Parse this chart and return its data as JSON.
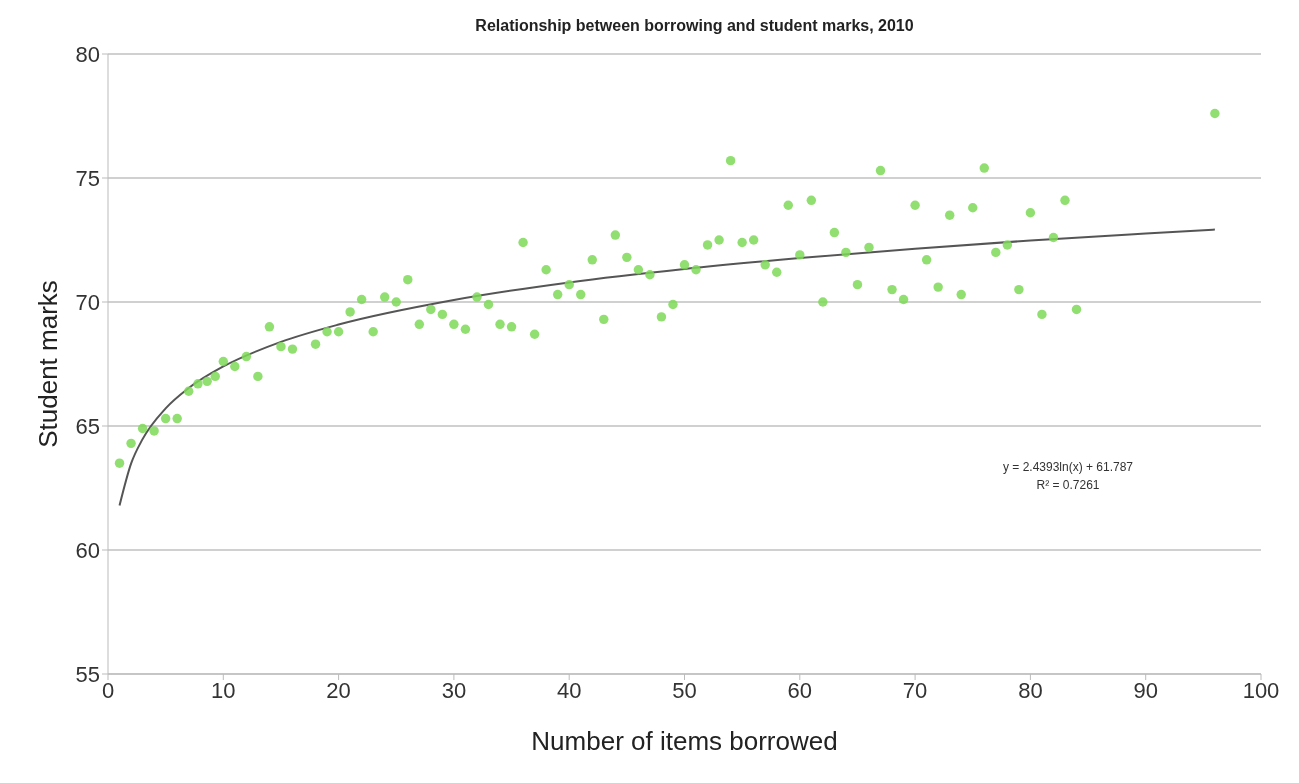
{
  "chart_data": {
    "type": "scatter",
    "title": "Relationship between borrowing and student marks, 2010",
    "xlabel": "Number of items borrowed",
    "ylabel": "Student marks",
    "xlim": [
      0,
      100
    ],
    "xticks": [
      0,
      10,
      20,
      30,
      40,
      50,
      60,
      70,
      80,
      90,
      100
    ],
    "ylim": [
      55,
      80
    ],
    "yticks": [
      55,
      60,
      65,
      70,
      75,
      80
    ],
    "grid": "y",
    "legend": false,
    "marker": "circle",
    "annotations": [
      "y = 2.4393ln(x) + 61.787",
      "R² = 0.7261"
    ],
    "series": [
      {
        "color": "#7ed957",
        "x": [
          1,
          2,
          3,
          4,
          5,
          6,
          7,
          7.8,
          8.6,
          9.3,
          10,
          11,
          12,
          13,
          14,
          15,
          16,
          18,
          19,
          20,
          21,
          22,
          23,
          24,
          25,
          26,
          27,
          28,
          29,
          30,
          31,
          32,
          33,
          34,
          35,
          36,
          37,
          38,
          39,
          40,
          41,
          42,
          43,
          44,
          45,
          46,
          47,
          48,
          49,
          50,
          51,
          52,
          53,
          54,
          55,
          56,
          57,
          58,
          59,
          60,
          61,
          62,
          63,
          64,
          65,
          66,
          67,
          68,
          69,
          70,
          71,
          72,
          73,
          74,
          75,
          76,
          77,
          78,
          79,
          80,
          81,
          82,
          83,
          84,
          96
        ],
        "values": [
          63.5,
          64.3,
          64.9,
          64.8,
          65.3,
          65.3,
          66.4,
          66.7,
          66.8,
          67.0,
          67.6,
          67.4,
          67.8,
          67.0,
          69.0,
          68.2,
          68.1,
          68.3,
          68.8,
          68.8,
          69.6,
          70.1,
          68.8,
          70.2,
          70.0,
          70.9,
          69.1,
          69.7,
          69.5,
          69.1,
          68.9,
          70.2,
          69.9,
          69.1,
          69.0,
          72.4,
          68.7,
          71.3,
          70.3,
          70.7,
          70.3,
          71.7,
          69.3,
          72.7,
          71.8,
          71.3,
          71.1,
          69.4,
          69.9,
          71.5,
          71.3,
          72.3,
          72.5,
          75.7,
          72.4,
          72.5,
          71.5,
          71.2,
          73.9,
          71.9,
          74.1,
          70.0,
          72.8,
          72.0,
          70.7,
          72.2,
          75.3,
          70.5,
          70.1,
          73.9,
          71.7,
          70.6,
          73.5,
          70.3,
          73.8,
          75.4,
          72.0,
          72.3,
          70.5,
          73.6,
          69.5,
          72.6,
          74.1,
          69.7,
          77.6
        ]
      },
      {
        "type": "line",
        "color": "#555555",
        "marker": "none",
        "line_style": "solid",
        "x": [
          1,
          2,
          3,
          5,
          7,
          10,
          15,
          20,
          30,
          40,
          50,
          60,
          70,
          80,
          90,
          96
        ],
        "values": [
          61.79,
          63.48,
          64.47,
          65.71,
          66.53,
          67.4,
          68.39,
          69.09,
          70.08,
          70.79,
          71.33,
          71.77,
          72.15,
          72.48,
          72.76,
          72.92
        ]
      }
    ]
  }
}
